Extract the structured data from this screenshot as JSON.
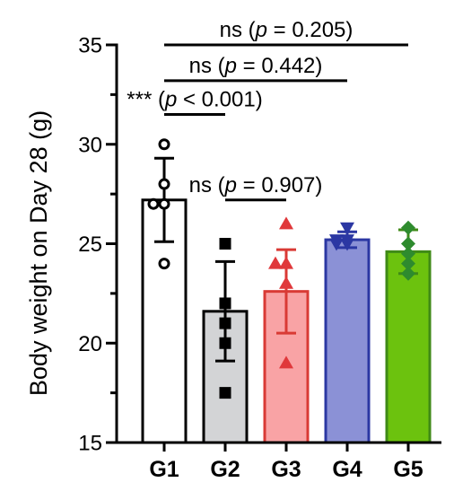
{
  "chart_data": {
    "type": "bar",
    "ylabel": "Body weight on Day 28 (g)",
    "xlabel": "",
    "ylim": [
      15,
      35
    ],
    "yticks": [
      15,
      20,
      25,
      30,
      35
    ],
    "ytick_labels": [
      "15",
      "20",
      "25",
      "30",
      "35"
    ],
    "categories": [
      "G1",
      "G2",
      "G3",
      "G4",
      "G5"
    ],
    "values": [
      27.2,
      21.6,
      22.6,
      25.2,
      24.6
    ],
    "error": [
      2.1,
      2.5,
      2.1,
      0.4,
      1.1
    ],
    "points": [
      [
        30.0,
        28.0,
        27.0,
        27.0,
        24.0
      ],
      [
        25.0,
        22.0,
        21.0,
        20.0,
        17.5
      ],
      [
        26.0,
        24.0,
        24.0,
        23.0,
        19.0
      ],
      [
        25.8,
        25.2,
        25.2,
        25.0,
        25.0
      ],
      [
        25.8,
        25.0,
        24.5,
        24.0,
        23.5
      ]
    ],
    "markers": [
      "circle-open",
      "square",
      "triangle-up",
      "triangle-down",
      "diamond"
    ],
    "colors": {
      "fill": [
        "#ffffff",
        "#d3d4d6",
        "#f9a3a5",
        "#8b91d6",
        "#6cc20e"
      ],
      "edge": [
        "#000000",
        "#000000",
        "#d93a35",
        "#2b37a3",
        "#3f8a17"
      ],
      "marker": [
        "#000000",
        "#000000",
        "#e0383b",
        "#2b37a3",
        "#2e8b2e"
      ]
    },
    "comparisons": [
      {
        "from": 0,
        "to": 4,
        "label": "ns (p = 0.205)",
        "prefix": "ns (",
        "p": "p",
        "suffix": " = 0.205)",
        "level": 35.0
      },
      {
        "from": 0,
        "to": 3,
        "label": "ns (p = 0.442)",
        "prefix": "ns (",
        "p": "p",
        "suffix": " = 0.442)",
        "level": 33.2
      },
      {
        "from": 0,
        "to": 1,
        "label": "*** (p < 0.001)",
        "prefix": "*** (",
        "p": "p",
        "suffix": " < 0.001)",
        "level": 31.5
      },
      {
        "from": 1,
        "to": 2,
        "label": "ns (p = 0.907)",
        "prefix": "ns (",
        "p": "p",
        "suffix": " = 0.907)",
        "level": 27.2
      }
    ]
  }
}
